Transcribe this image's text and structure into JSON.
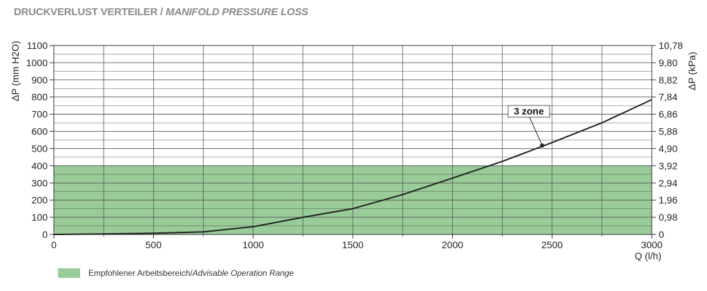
{
  "header": {
    "title_de": "DRUCKVERLUST VERTEILER",
    "title_sep": " / ",
    "title_en": "MANIFOLD PRESSURE LOSS"
  },
  "legend": {
    "label_de": "Empfohlener Arbeitsbereich",
    "label_sep": " / ",
    "label_en": "Advisable Operation Range"
  },
  "colors": {
    "range_fill": "#99cc99",
    "curve": "#222222",
    "grid": "#555555"
  },
  "chart_data": {
    "type": "line",
    "title": "DRUCKVERLUST VERTEILER / MANIFOLD PRESSURE LOSS",
    "xlabel": "Q (l/h)",
    "ylabel_left": "ΔP (mm H2O)",
    "ylabel_right": "ΔP (kPa)",
    "xlim": [
      0,
      3000
    ],
    "ylim": [
      0,
      1100
    ],
    "x_ticks": [
      0,
      500,
      1000,
      1500,
      2000,
      2500,
      3000
    ],
    "x_grid_step": 250,
    "y_ticks_left": [
      0,
      100,
      200,
      300,
      400,
      500,
      600,
      700,
      800,
      900,
      1000,
      1100
    ],
    "y_ticks_right": [
      "0",
      "0,98",
      "1,96",
      "2,94",
      "3,92",
      "4,90",
      "5,88",
      "6,86",
      "7,84",
      "8,82",
      "9,80",
      "10,78"
    ],
    "y_minor_step": 50,
    "grid": true,
    "shaded_range": {
      "label": "Empfohlener Arbeitsbereich / Advisable Operation Range",
      "y_from": 0,
      "y_to": 400
    },
    "series": [
      {
        "name": "3 zone",
        "x": [
          0,
          250,
          500,
          750,
          1000,
          1250,
          1500,
          1750,
          2000,
          2250,
          2500,
          2750,
          3000
        ],
        "y": [
          0,
          3,
          7,
          15,
          45,
          100,
          150,
          232,
          328,
          425,
          535,
          650,
          785
        ]
      }
    ],
    "annotations": [
      {
        "text": "3 zone",
        "x": 2450,
        "y": 518
      }
    ]
  }
}
